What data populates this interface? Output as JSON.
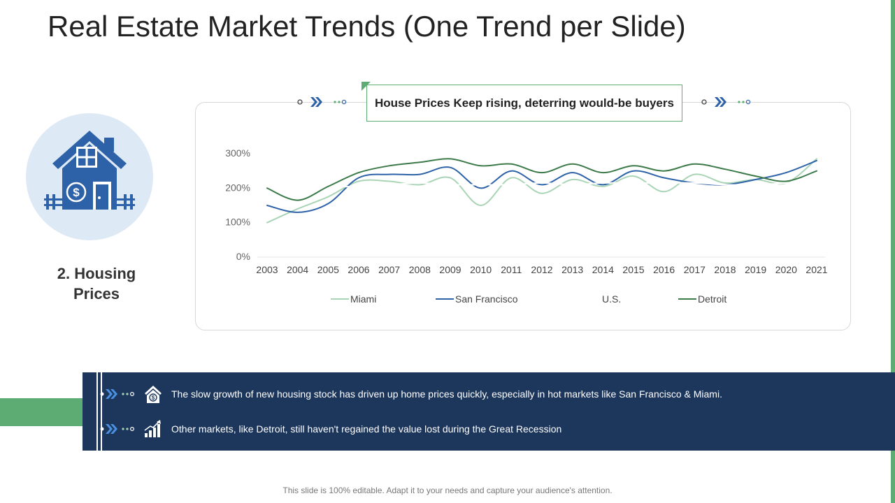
{
  "slide": {
    "title": "Real Estate Market Trends (One Trend per Slide)",
    "trend_label": "2. Housing Prices",
    "footer": "This slide is 100% editable. Adapt it to your needs and capture your audience's attention."
  },
  "colors": {
    "accent_green": "#5dac73",
    "navy": "#1c365c",
    "icon_blue": "#2e62a8",
    "icon_bg": "#dde9f5"
  },
  "icons": {
    "house": "house-dollar-icon",
    "note1": "house-dollar-icon",
    "note2": "bar-chart-growth-icon"
  },
  "notes": [
    {
      "text": "The slow growth of new housing stock has driven up home prices quickly, especially in hot markets like San Francisco & Miami."
    },
    {
      "text": "Other markets, like Detroit, still haven't regained the value lost during the Great Recession"
    }
  ],
  "chart_data": {
    "type": "line",
    "title": "House Prices Keep rising, deterring would-be buyers",
    "xlabel": "",
    "ylabel": "",
    "ylim": [
      0,
      300
    ],
    "yticks": [
      "0%",
      "100%",
      "200%",
      "300%"
    ],
    "categories": [
      "2003",
      "2004",
      "2005",
      "2006",
      "2007",
      "2008",
      "2009",
      "2010",
      "2011",
      "2012",
      "2013",
      "2014",
      "2015",
      "2016",
      "2017",
      "2018",
      "2019",
      "2020",
      "2021"
    ],
    "legend_position": "bottom",
    "series": [
      {
        "name": "Miami",
        "color": "#a9d4b5",
        "values": [
          100,
          140,
          175,
          220,
          220,
          210,
          230,
          150,
          230,
          185,
          225,
          205,
          235,
          190,
          240,
          215,
          225,
          215,
          285
        ]
      },
      {
        "name": "San Francisco",
        "color": "#2e62a8",
        "values": [
          150,
          130,
          155,
          230,
          240,
          240,
          260,
          200,
          250,
          210,
          245,
          210,
          250,
          230,
          215,
          210,
          225,
          245,
          280
        ]
      },
      {
        "name": "U.S.",
        "color": "#ffffff",
        "values": [
          210,
          210,
          205,
          205,
          210,
          215,
          210,
          210,
          210,
          215,
          210,
          215,
          215,
          215,
          215,
          210,
          210,
          215,
          225
        ]
      },
      {
        "name": "Detroit",
        "color": "#3d7a4a",
        "values": [
          200,
          165,
          205,
          245,
          265,
          275,
          285,
          265,
          270,
          245,
          270,
          245,
          265,
          250,
          270,
          255,
          235,
          220,
          250
        ]
      }
    ]
  }
}
